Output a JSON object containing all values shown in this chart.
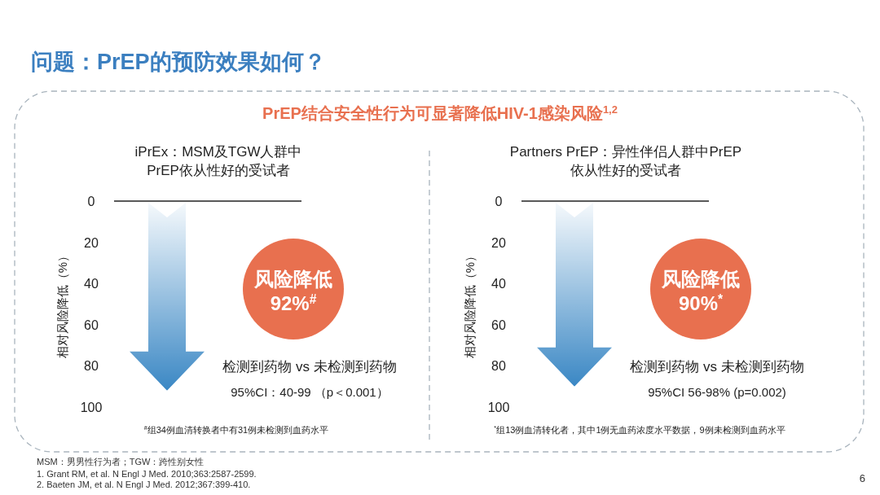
{
  "chart_data": [
    {
      "type": "other",
      "title": "问题：PrEP的预防效果如何？",
      "subtitle": "PrEP结合安全性行为可显著降低HIV-1感染风险$^{1,2}$",
      "annotations": [
        "MSM：男男性行为者；TGW：跨性别女性",
        "1.    Grant RM, et al. N Engl J Med. 2010;363:2587-2599.",
        "2.    Baeten JM, et al. N Engl J Med. 2012;367:399-410.",
        "6"
      ]
    },
    {
      "type": "bar",
      "title": "iPrEx：MSM及TGW人群中\nPrEP依从性好的受试者",
      "ylabel": "相对风险降低（%）",
      "categories": [
        null
      ],
      "values": [
        92
      ],
      "color": "#3a87c4",
      "ylim": [
        100,
        0
      ],
      "yticks": [
        0,
        20,
        40,
        60,
        80,
        100
      ],
      "annotations": [
        "风险降低\n92%$^{#}$",
        "检测到药物 vs 未检测到药物",
        "95%CI：40-99 （p＜0.001）",
        "$^{#}$组34例血清转换者中有31例未检测到血药水平"
      ]
    },
    {
      "type": "bar",
      "title": "Partners PrEP：异性伴侣人群中PrEP\n依从性好的受试者",
      "ylabel": "相对风险降低（%）",
      "categories": [
        null
      ],
      "values": [
        90
      ],
      "color": "#3a87c4",
      "ylim": [
        100,
        0
      ],
      "yticks": [
        0,
        20,
        40,
        60,
        80,
        100
      ],
      "annotations": [
        "风险降低\n90%$^{*}$",
        "检测到药物 vs 未检测到药物",
        "95%CI 56-98% (p=0.002)",
        "$^{*}$组13例血清转化者，其中1例无血药浓度水平数据，9例未检测到血药水平"
      ]
    }
  ]
}
